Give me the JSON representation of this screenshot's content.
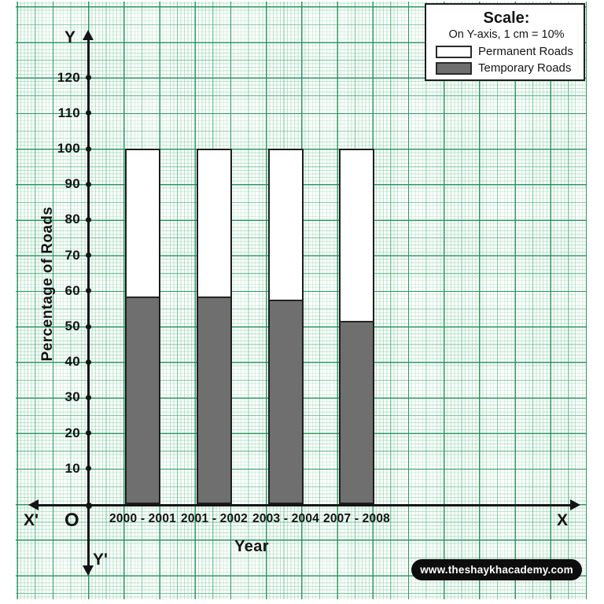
{
  "scale_box": {
    "title": "Scale:",
    "subtitle": "On Y-axis, 1 cm = 10%",
    "legend": [
      {
        "label": "Permanent Roads",
        "color": "#ffffff"
      },
      {
        "label": "Temporary Roads",
        "color": "#6f6f6f"
      }
    ]
  },
  "axes": {
    "y_letter": "Y",
    "y_prime_letter": "Y'",
    "x_letter": "X",
    "x_prime_letter": "X'",
    "origin_label": "O",
    "y_title": "Percentage of Roads",
    "x_title": "Year"
  },
  "watermark_text": "www.theshaykhacademy.com",
  "colors": {
    "grid_major": "#1c8e56",
    "bar_border": "#1d1d1d",
    "temporary_fill": "#6f6f6f",
    "permanent_fill": "#ffffff"
  },
  "chart_data": {
    "type": "bar",
    "stacked": true,
    "title": "",
    "xlabel": "Year",
    "ylabel": "Percentage of Roads",
    "unit": "%",
    "categories": [
      "2000 - 2001",
      "2001 - 2002",
      "2003 - 2004",
      "2007 - 2008"
    ],
    "series": [
      {
        "name": "Temporary Roads",
        "color": "#6f6f6f",
        "values": [
          58,
          58,
          57,
          51
        ]
      },
      {
        "name": "Permanent Roads",
        "color": "#ffffff",
        "values": [
          42,
          42,
          43,
          49
        ]
      }
    ],
    "bar_totals": [
      100,
      100,
      100,
      100
    ],
    "yticks": [
      10,
      20,
      30,
      40,
      50,
      60,
      70,
      80,
      90,
      100,
      110,
      120
    ],
    "ylim": [
      0,
      130
    ],
    "grid": true,
    "legend_position": "top-right",
    "scale_note": "On Y-axis, 1 cm = 10%"
  }
}
